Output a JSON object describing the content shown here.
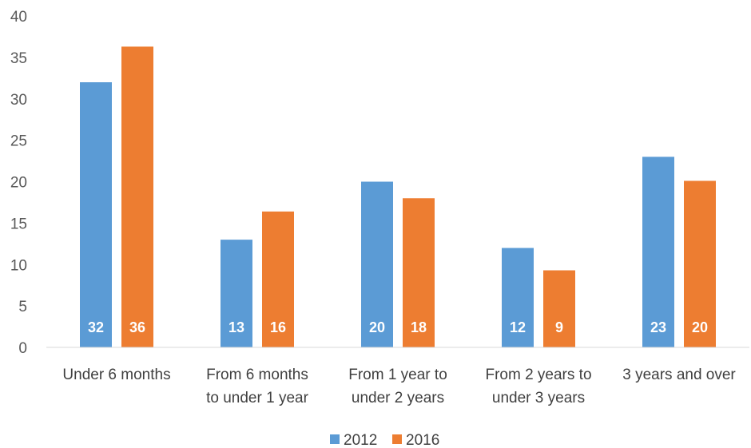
{
  "chart_data": {
    "type": "bar",
    "title": "",
    "xlabel": "",
    "ylabel": "",
    "ylim": [
      0,
      40
    ],
    "yticks": [
      0,
      5,
      10,
      15,
      20,
      25,
      30,
      35,
      40
    ],
    "grid": false,
    "legend": "bottom",
    "categories": [
      [
        "Under 6 months"
      ],
      [
        "From 6 months",
        "to under 1 year"
      ],
      [
        "From 1 year to",
        "under 2 years"
      ],
      [
        "From 2 years to",
        "under 3 years"
      ],
      [
        "3 years and over"
      ]
    ],
    "series": [
      {
        "name": "2012",
        "color": "#5b9bd5",
        "values": [
          32,
          13,
          20,
          12,
          23
        ],
        "labels": [
          "32",
          "13",
          "20",
          "12",
          "23"
        ]
      },
      {
        "name": "2016",
        "color": "#ed7d31",
        "values": [
          36.3,
          16.4,
          18,
          9.3,
          20.1
        ],
        "labels": [
          "36",
          "16",
          "18",
          "9",
          "20"
        ]
      }
    ]
  }
}
